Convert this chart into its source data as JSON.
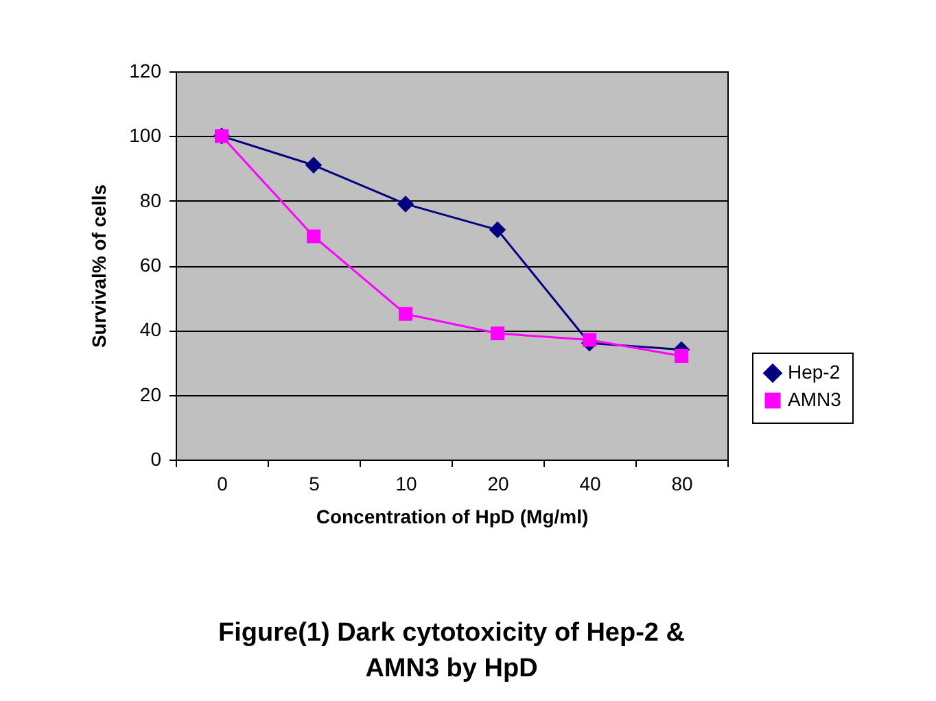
{
  "chart_data": {
    "type": "line",
    "title": "Figure(1) Dark cytotoxicity of Hep-2 & AMN3 by HpD",
    "xlabel": "Concentration of HpD (Mg/ml)",
    "ylabel": "Survival% of cells",
    "categories": [
      "0",
      "5",
      "10",
      "20",
      "40",
      "80"
    ],
    "series": [
      {
        "name": "Hep-2",
        "color": "#000080",
        "marker": "diamond",
        "values": [
          100,
          91,
          79,
          71,
          36,
          34
        ]
      },
      {
        "name": "AMN3",
        "color": "#ff00ff",
        "marker": "square",
        "values": [
          100,
          69,
          45,
          39,
          37,
          32
        ]
      }
    ],
    "ylim": [
      0,
      120
    ],
    "yticks": [
      0,
      20,
      40,
      60,
      80,
      100,
      120
    ],
    "grid": "y",
    "legend": "right"
  }
}
